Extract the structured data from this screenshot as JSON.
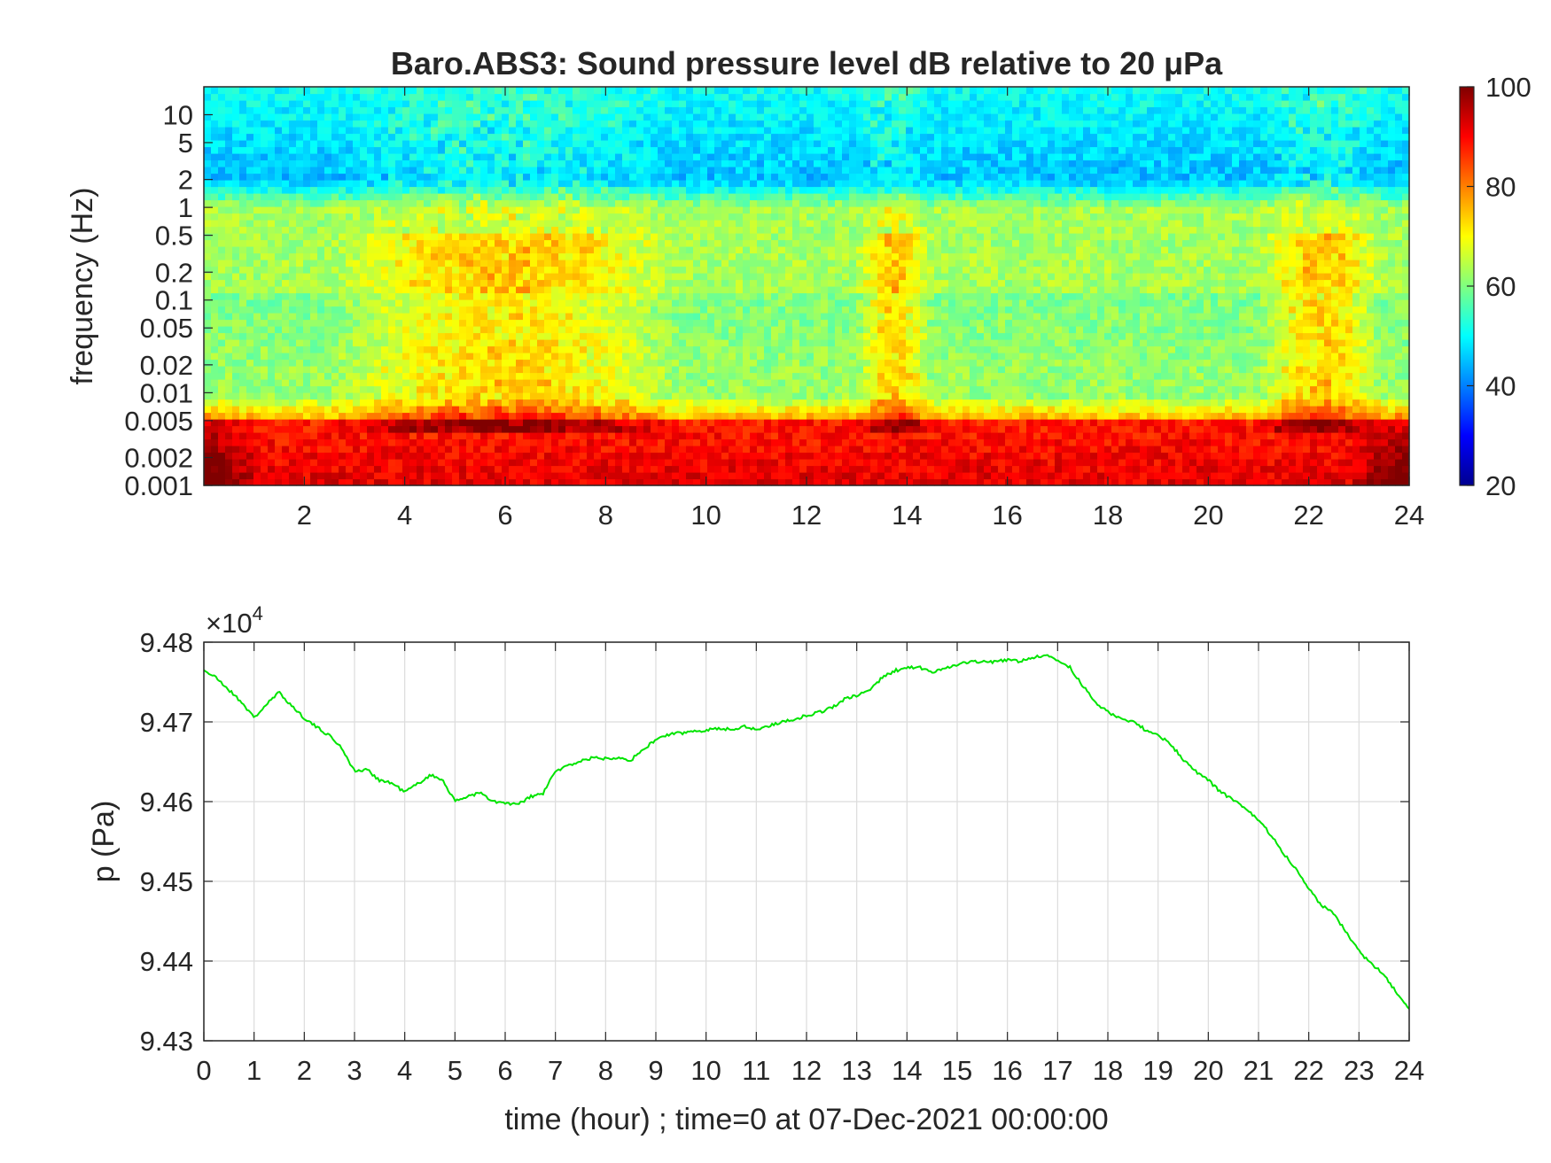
{
  "chart_data": [
    {
      "type": "heatmap",
      "title": "Baro.ABS3: Sound pressure level dB relative to 20 μPa",
      "xlabel": "",
      "ylabel": "frequency (Hz)",
      "x_axis": {
        "range": [
          0,
          24
        ],
        "ticks": [
          2,
          4,
          6,
          8,
          10,
          12,
          14,
          16,
          18,
          20,
          22,
          24
        ],
        "tick_labels": [
          "2",
          "4",
          "6",
          "8",
          "10",
          "12",
          "14",
          "16",
          "18",
          "20",
          "22",
          "24"
        ]
      },
      "y_axis": {
        "scale": "log",
        "range": [
          0.001,
          20
        ],
        "ticks": [
          0.001,
          0.002,
          0.005,
          0.01,
          0.02,
          0.05,
          0.1,
          0.2,
          0.5,
          1,
          2,
          5,
          10
        ],
        "tick_labels": [
          "0.001",
          "0.002",
          "0.005",
          "0.01",
          "0.02",
          "0.05",
          "0.1",
          "0.2",
          "0.5",
          "1",
          "2",
          "5",
          "10"
        ]
      },
      "colorbar": {
        "range": [
          20,
          100
        ],
        "ticks": [
          20,
          40,
          60,
          80,
          100
        ],
        "tick_labels": [
          "20",
          "40",
          "60",
          "80",
          "100"
        ],
        "colormap": "jet",
        "placement": "right"
      },
      "value_bands_db": [
        {
          "freq_range_hz": [
            2,
            20
          ],
          "approx_db": 45
        },
        {
          "freq_range_hz": [
            0.2,
            1
          ],
          "approx_db": 63
        },
        {
          "freq_range_hz": [
            0.01,
            0.1
          ],
          "approx_db": 60
        },
        {
          "freq_range_hz": [
            0.001,
            0.005
          ],
          "approx_db": 88
        }
      ],
      "active_periods_hours": [
        [
          2.5,
          9.5
        ],
        [
          13,
          14.5
        ],
        [
          21,
          23.5
        ]
      ],
      "grid": false
    },
    {
      "type": "line",
      "title": "",
      "xlabel": "time (hour) ; time=0 at 07-Dec-2021 00:00:00",
      "ylabel": "p (Pa)",
      "y_exponent_label": "×10",
      "y_exponent_power": "4",
      "xlim": [
        0,
        24
      ],
      "ylim": [
        94300,
        94800
      ],
      "x_ticks": [
        0,
        1,
        2,
        3,
        4,
        5,
        6,
        7,
        8,
        9,
        10,
        11,
        12,
        13,
        14,
        15,
        16,
        17,
        18,
        19,
        20,
        21,
        22,
        23,
        24
      ],
      "x_tick_labels": [
        "0",
        "1",
        "2",
        "3",
        "4",
        "5",
        "6",
        "7",
        "8",
        "9",
        "10",
        "11",
        "12",
        "13",
        "14",
        "15",
        "16",
        "17",
        "18",
        "19",
        "20",
        "21",
        "22",
        "23",
        "24"
      ],
      "y_ticks": [
        94300,
        94400,
        94500,
        94600,
        94700,
        94800
      ],
      "y_tick_labels": [
        "9.43",
        "9.44",
        "9.45",
        "9.46",
        "9.47",
        "9.48"
      ],
      "grid": true,
      "series": [
        {
          "color": "#00e400",
          "x": [
            0,
            0.25,
            0.5,
            0.75,
            1,
            1.25,
            1.5,
            1.75,
            2,
            2.25,
            2.5,
            2.75,
            3,
            3.25,
            3.5,
            3.75,
            4,
            4.25,
            4.5,
            4.75,
            5,
            5.25,
            5.5,
            5.75,
            6,
            6.25,
            6.5,
            6.75,
            7,
            7.25,
            7.5,
            7.75,
            8,
            8.25,
            8.5,
            8.75,
            9,
            9.25,
            9.5,
            9.75,
            10,
            10.25,
            10.5,
            10.75,
            11,
            11.25,
            11.5,
            11.75,
            12,
            12.25,
            12.5,
            12.75,
            13,
            13.25,
            13.5,
            13.75,
            14,
            14.25,
            14.5,
            14.75,
            15,
            15.25,
            15.5,
            15.75,
            16,
            16.25,
            16.5,
            16.75,
            17,
            17.25,
            17.5,
            17.75,
            18,
            18.25,
            18.5,
            18.75,
            19,
            19.25,
            19.5,
            19.75,
            20,
            20.25,
            20.5,
            20.75,
            21,
            21.25,
            21.5,
            21.75,
            22,
            22.25,
            22.5,
            22.75,
            23,
            23.25,
            23.5,
            23.75,
            24
          ],
          "y": [
            94765,
            94755,
            94740,
            94725,
            94705,
            94722,
            94737,
            94720,
            94705,
            94693,
            94683,
            94667,
            94638,
            94640,
            94627,
            94623,
            94612,
            94622,
            94633,
            94628,
            94600,
            94607,
            94611,
            94600,
            94598,
            94596,
            94606,
            94610,
            94638,
            94645,
            94651,
            94655,
            94654,
            94656,
            94652,
            94665,
            94678,
            94684,
            94686,
            94688,
            94690,
            94692,
            94690,
            94695,
            94690,
            94695,
            94700,
            94703,
            94708,
            94712,
            94718,
            94728,
            94733,
            94740,
            94755,
            94764,
            94768,
            94768,
            94762,
            94768,
            94772,
            94775,
            94776,
            94775,
            94778,
            94776,
            94781,
            94783,
            94778,
            94768,
            94745,
            94725,
            94712,
            94705,
            94700,
            94690,
            94683,
            94672,
            94653,
            94638,
            94627,
            94612,
            94602,
            94590,
            94577,
            94558,
            94535,
            94515,
            94492,
            94470,
            94460,
            94435,
            94412,
            94397,
            94383,
            94360,
            94340
          ]
        }
      ]
    }
  ]
}
